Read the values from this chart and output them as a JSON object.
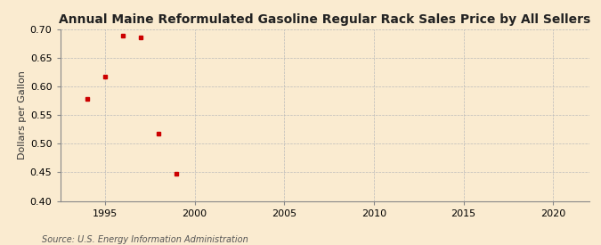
{
  "title": "Annual Maine Reformulated Gasoline Regular Rack Sales Price by All Sellers",
  "ylabel": "Dollars per Gallon",
  "source": "Source: U.S. Energy Information Administration",
  "background_color": "#faebd0",
  "data_color": "#cc0000",
  "x_data": [
    1994,
    1995,
    1996,
    1997,
    1998,
    1999
  ],
  "y_data": [
    0.578,
    0.617,
    0.689,
    0.686,
    0.517,
    0.447
  ],
  "xlim": [
    1992.5,
    2022
  ],
  "ylim": [
    0.4,
    0.7
  ],
  "xticks": [
    1995,
    2000,
    2005,
    2010,
    2015,
    2020
  ],
  "yticks": [
    0.4,
    0.45,
    0.5,
    0.55,
    0.6,
    0.65,
    0.7
  ],
  "grid_color": "#bbbbbb",
  "title_fontsize": 10,
  "label_fontsize": 8,
  "tick_fontsize": 8,
  "source_fontsize": 7,
  "marker": "s",
  "marker_size": 3.5
}
